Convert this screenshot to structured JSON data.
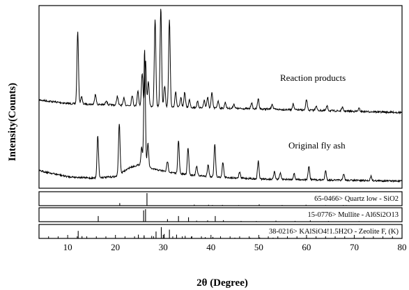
{
  "chart_data": {
    "type": "line",
    "xlabel": "2θ (Degree)",
    "ylabel": "Intensity(Counts)",
    "xlim": [
      4,
      80
    ],
    "xticks": [
      10,
      20,
      30,
      40,
      50,
      60,
      70,
      80
    ],
    "grid": false,
    "series": [
      {
        "name": "Reaction products",
        "baseline": [
          [
            4,
            0.62
          ],
          [
            10,
            0.5
          ],
          [
            20,
            0.45
          ],
          [
            30,
            0.4
          ],
          [
            40,
            0.35
          ],
          [
            50,
            0.32
          ],
          [
            60,
            0.28
          ],
          [
            80,
            0.2
          ]
        ],
        "peaks": [
          [
            12.1,
            2.4
          ],
          [
            12.9,
            0.25
          ],
          [
            15.8,
            0.35
          ],
          [
            18.1,
            0.15
          ],
          [
            20.4,
            0.3
          ],
          [
            21.8,
            0.25
          ],
          [
            23.5,
            0.35
          ],
          [
            24.7,
            0.5
          ],
          [
            25.6,
            1.1
          ],
          [
            26.3,
            1.5
          ],
          [
            26.9,
            0.8
          ],
          [
            28.3,
            2.9
          ],
          [
            29.5,
            3.3
          ],
          [
            30.3,
            0.7
          ],
          [
            31.3,
            2.9
          ],
          [
            32.6,
            0.5
          ],
          [
            33.7,
            0.3
          ],
          [
            34.5,
            0.5
          ],
          [
            35.5,
            0.25
          ],
          [
            37.2,
            0.2
          ],
          [
            38.6,
            0.25
          ],
          [
            39.3,
            0.35
          ],
          [
            40.2,
            0.5
          ],
          [
            41.5,
            0.25
          ],
          [
            43.0,
            0.2
          ],
          [
            44.8,
            0.15
          ],
          [
            48.5,
            0.2
          ],
          [
            49.9,
            0.35
          ],
          [
            52.8,
            0.18
          ],
          [
            57.2,
            0.2
          ],
          [
            60.0,
            0.35
          ],
          [
            62.0,
            0.15
          ],
          [
            64.3,
            0.15
          ],
          [
            67.5,
            0.12
          ],
          [
            71.0,
            0.1
          ]
        ]
      },
      {
        "name": "Original fly ash",
        "baseline": [
          [
            4,
            0.4
          ],
          [
            10,
            0.2
          ],
          [
            15,
            0.15
          ],
          [
            20,
            0.2
          ],
          [
            23,
            0.5
          ],
          [
            25,
            0.6
          ],
          [
            28,
            0.45
          ],
          [
            33,
            0.3
          ],
          [
            40,
            0.2
          ],
          [
            50,
            0.12
          ],
          [
            60,
            0.1
          ],
          [
            80,
            0.05
          ]
        ],
        "peaks": [
          [
            16.3,
            1.4
          ],
          [
            20.8,
            1.7
          ],
          [
            25.5,
            0.6
          ],
          [
            26.1,
            3.9
          ],
          [
            26.8,
            0.8
          ],
          [
            30.9,
            0.35
          ],
          [
            33.2,
            1.1
          ],
          [
            35.2,
            0.9
          ],
          [
            37.0,
            0.3
          ],
          [
            39.4,
            0.4
          ],
          [
            40.8,
            1.1
          ],
          [
            42.5,
            0.5
          ],
          [
            46.0,
            0.2
          ],
          [
            49.9,
            0.6
          ],
          [
            53.3,
            0.25
          ],
          [
            54.5,
            0.2
          ],
          [
            57.4,
            0.2
          ],
          [
            60.5,
            0.45
          ],
          [
            64.0,
            0.3
          ],
          [
            67.8,
            0.2
          ],
          [
            73.5,
            0.15
          ]
        ]
      }
    ],
    "annotations": [
      "Reaction products",
      "Original fly ash"
    ],
    "reference_patterns": [
      {
        "label": "65-0466> Quartz low - SiO2",
        "lines": [
          [
            20.9,
            0.2
          ],
          [
            26.6,
            1.0
          ],
          [
            36.5,
            0.08
          ],
          [
            39.5,
            0.07
          ],
          [
            40.3,
            0.05
          ],
          [
            42.4,
            0.06
          ],
          [
            45.8,
            0.04
          ],
          [
            50.1,
            0.1
          ],
          [
            54.9,
            0.05
          ],
          [
            59.9,
            0.07
          ],
          [
            64.0,
            0.04
          ],
          [
            67.7,
            0.05
          ],
          [
            68.3,
            0.04
          ]
        ]
      },
      {
        "label": "15-0776> Mullite - Al6Si2O13",
        "lines": [
          [
            16.4,
            0.45
          ],
          [
            25.9,
            0.9
          ],
          [
            26.3,
            1.0
          ],
          [
            30.9,
            0.2
          ],
          [
            33.2,
            0.45
          ],
          [
            35.3,
            0.35
          ],
          [
            37.0,
            0.08
          ],
          [
            39.3,
            0.1
          ],
          [
            40.9,
            0.45
          ],
          [
            42.6,
            0.12
          ],
          [
            46.3,
            0.06
          ],
          [
            49.5,
            0.05
          ],
          [
            53.6,
            0.08
          ],
          [
            57.6,
            0.06
          ],
          [
            60.8,
            0.1
          ],
          [
            64.6,
            0.05
          ],
          [
            71.0,
            0.04
          ]
        ]
      },
      {
        "label": "38-0216> KAlSiO4!1.5H2O - Zeolite F, (K)",
        "lines": [
          [
            12.2,
            0.6
          ],
          [
            13.0,
            0.18
          ],
          [
            24.8,
            0.3
          ],
          [
            26.0,
            0.25
          ],
          [
            27.6,
            0.2
          ],
          [
            28.5,
            0.55
          ],
          [
            29.6,
            0.9
          ],
          [
            30.2,
            0.35
          ],
          [
            31.3,
            0.7
          ],
          [
            32.8,
            0.3
          ],
          [
            34.6,
            0.2
          ],
          [
            35.9,
            0.15
          ],
          [
            38.8,
            0.1
          ],
          [
            40.4,
            0.12
          ],
          [
            42.0,
            0.08
          ],
          [
            45.0,
            0.06
          ],
          [
            48.2,
            0.05
          ],
          [
            50.2,
            0.08
          ],
          [
            53.0,
            0.06
          ],
          [
            56.0,
            0.05
          ],
          [
            60.0,
            0.07
          ],
          [
            64.0,
            0.04
          ]
        ]
      }
    ]
  }
}
